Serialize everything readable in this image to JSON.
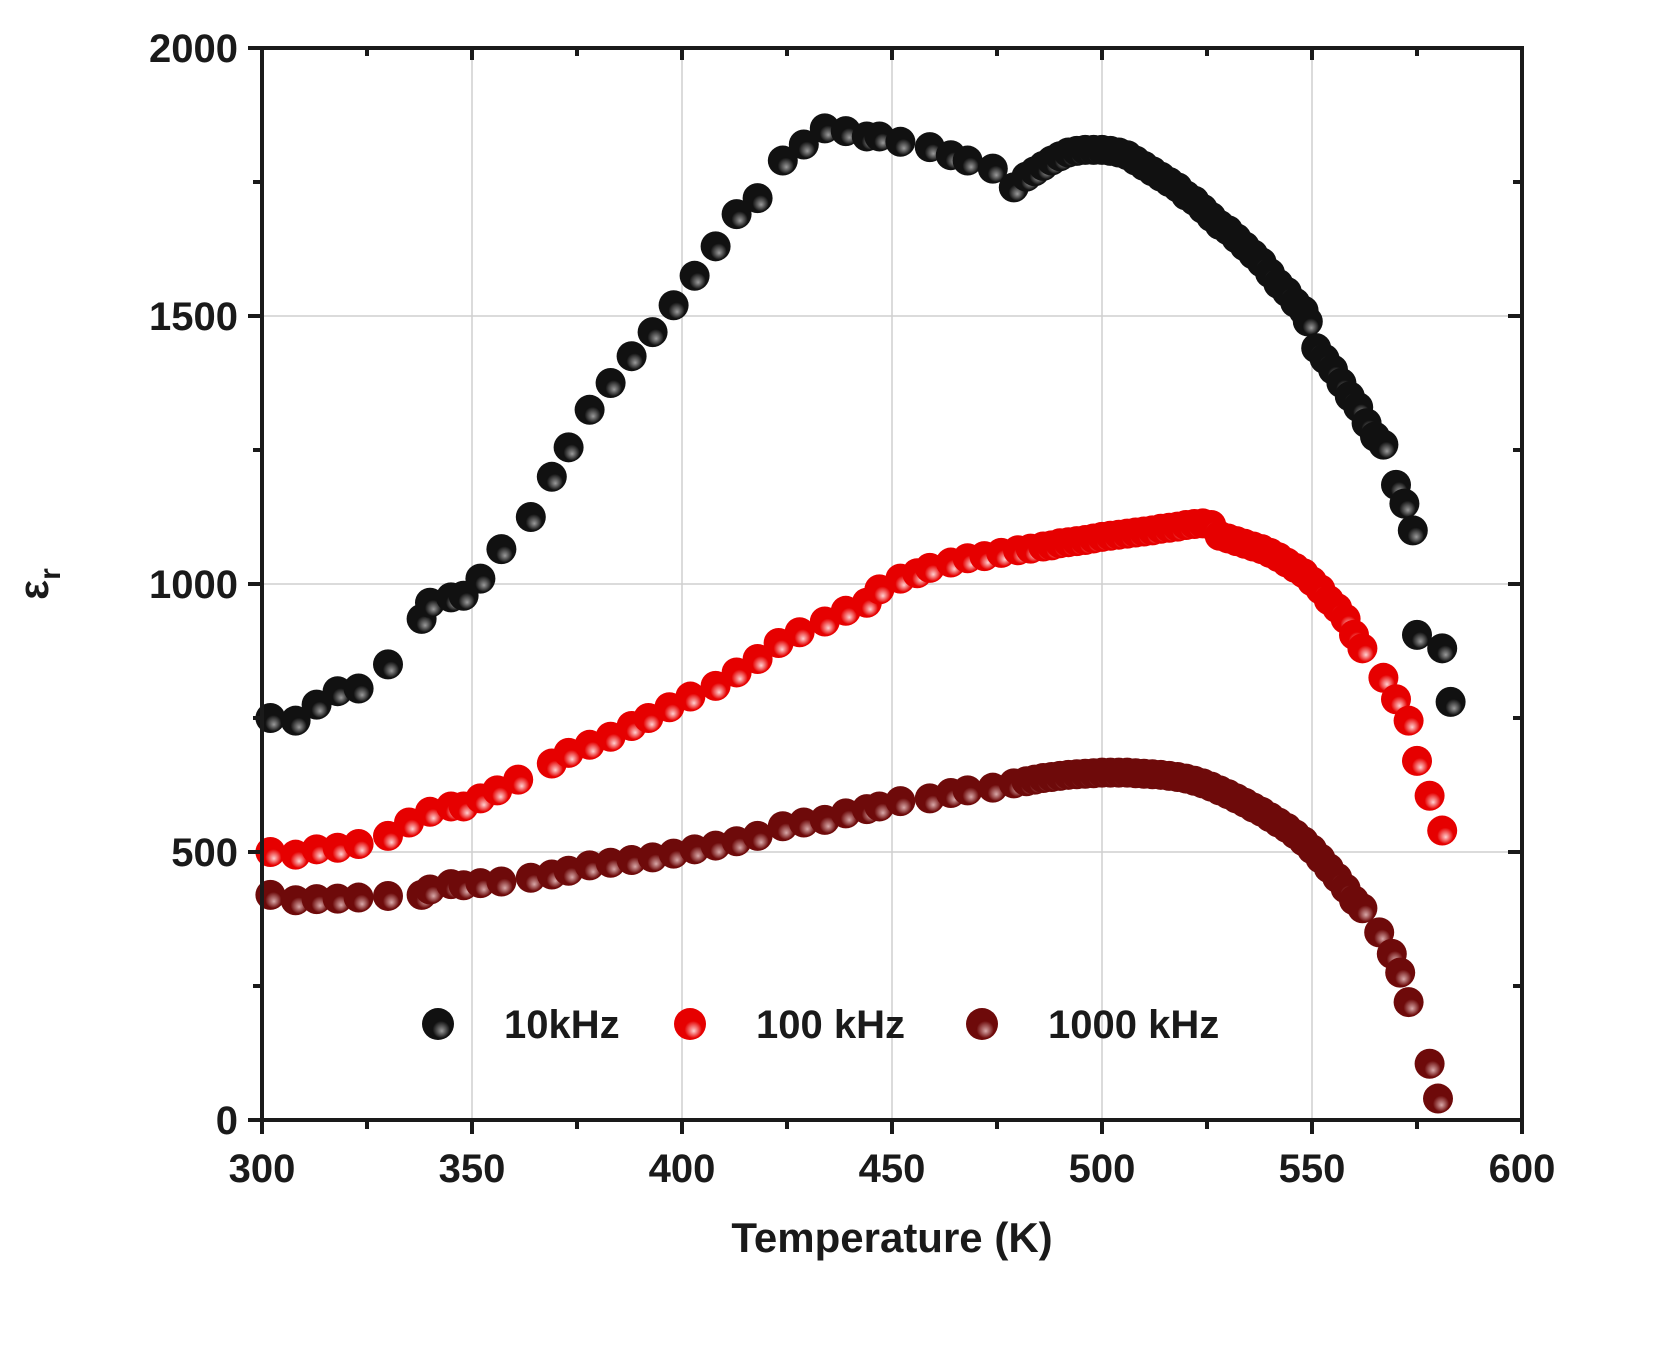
{
  "chart_data": {
    "type": "scatter",
    "title": "",
    "xlabel": "Temperature (K)",
    "ylabel_main": "ε",
    "ylabel_sub": "r",
    "xlim": [
      300,
      600
    ],
    "ylim": [
      0,
      2000
    ],
    "xticks": [
      300,
      350,
      400,
      450,
      500,
      550,
      600
    ],
    "yticks": [
      0,
      500,
      1000,
      1500,
      2000
    ],
    "grid": true,
    "legend_position": "bottom-center",
    "series": [
      {
        "name": "10kHz",
        "color": "#111111",
        "highlight": "#9a9a9a",
        "points": [
          [
            302,
            750
          ],
          [
            308,
            745
          ],
          [
            313,
            775
          ],
          [
            318,
            800
          ],
          [
            323,
            805
          ],
          [
            330,
            850
          ],
          [
            338,
            935
          ],
          [
            340,
            965
          ],
          [
            345,
            975
          ],
          [
            348,
            978
          ],
          [
            352,
            1010
          ],
          [
            357,
            1065
          ],
          [
            364,
            1125
          ],
          [
            369,
            1200
          ],
          [
            373,
            1255
          ],
          [
            378,
            1325
          ],
          [
            383,
            1375
          ],
          [
            388,
            1425
          ],
          [
            393,
            1470
          ],
          [
            398,
            1520
          ],
          [
            403,
            1575
          ],
          [
            408,
            1630
          ],
          [
            413,
            1690
          ],
          [
            418,
            1720
          ],
          [
            424,
            1790
          ],
          [
            429,
            1820
          ],
          [
            434,
            1850
          ],
          [
            439,
            1845
          ],
          [
            444,
            1835
          ],
          [
            447,
            1835
          ],
          [
            452,
            1825
          ],
          [
            459,
            1815
          ],
          [
            464,
            1800
          ],
          [
            468,
            1790
          ],
          [
            474,
            1775
          ],
          [
            479,
            1740
          ],
          [
            482,
            1760
          ],
          [
            484,
            1770
          ],
          [
            486,
            1780
          ],
          [
            488,
            1790
          ],
          [
            490,
            1798
          ],
          [
            492,
            1805
          ],
          [
            494,
            1808
          ],
          [
            496,
            1810
          ],
          [
            498,
            1810
          ],
          [
            500,
            1810
          ],
          [
            502,
            1808
          ],
          [
            504,
            1805
          ],
          [
            506,
            1800
          ],
          [
            508,
            1790
          ],
          [
            510,
            1780
          ],
          [
            512,
            1770
          ],
          [
            514,
            1760
          ],
          [
            516,
            1750
          ],
          [
            518,
            1740
          ],
          [
            520,
            1725
          ],
          [
            522,
            1715
          ],
          [
            524,
            1700
          ],
          [
            526,
            1685
          ],
          [
            528,
            1670
          ],
          [
            530,
            1660
          ],
          [
            532,
            1645
          ],
          [
            534,
            1630
          ],
          [
            536,
            1615
          ],
          [
            538,
            1600
          ],
          [
            540,
            1580
          ],
          [
            542,
            1560
          ],
          [
            544,
            1545
          ],
          [
            546,
            1525
          ],
          [
            548,
            1510
          ],
          [
            549,
            1490
          ],
          [
            551,
            1440
          ],
          [
            553,
            1420
          ],
          [
            555,
            1400
          ],
          [
            557,
            1375
          ],
          [
            559,
            1350
          ],
          [
            561,
            1330
          ],
          [
            563,
            1300
          ],
          [
            565,
            1275
          ],
          [
            567,
            1260
          ],
          [
            570,
            1185
          ],
          [
            572,
            1150
          ],
          [
            574,
            1100
          ],
          [
            575,
            905
          ],
          [
            581,
            880
          ],
          [
            583,
            780
          ]
        ]
      },
      {
        "name": "100 kHz",
        "color": "#e60000",
        "highlight": "#ffd0d0",
        "points": [
          [
            302,
            500
          ],
          [
            308,
            495
          ],
          [
            313,
            505
          ],
          [
            318,
            508
          ],
          [
            323,
            515
          ],
          [
            330,
            530
          ],
          [
            335,
            555
          ],
          [
            340,
            575
          ],
          [
            345,
            585
          ],
          [
            348,
            585
          ],
          [
            352,
            600
          ],
          [
            356,
            615
          ],
          [
            361,
            635
          ],
          [
            369,
            665
          ],
          [
            373,
            685
          ],
          [
            378,
            700
          ],
          [
            383,
            715
          ],
          [
            388,
            735
          ],
          [
            392,
            750
          ],
          [
            397,
            770
          ],
          [
            402,
            790
          ],
          [
            408,
            810
          ],
          [
            413,
            835
          ],
          [
            418,
            860
          ],
          [
            423,
            890
          ],
          [
            428,
            910
          ],
          [
            434,
            930
          ],
          [
            439,
            950
          ],
          [
            444,
            965
          ],
          [
            447,
            990
          ],
          [
            452,
            1010
          ],
          [
            456,
            1020
          ],
          [
            459,
            1030
          ],
          [
            464,
            1040
          ],
          [
            468,
            1048
          ],
          [
            472,
            1052
          ],
          [
            476,
            1058
          ],
          [
            480,
            1063
          ],
          [
            483,
            1066
          ],
          [
            486,
            1070
          ],
          [
            488,
            1072
          ],
          [
            490,
            1076
          ],
          [
            492,
            1078
          ],
          [
            494,
            1080
          ],
          [
            496,
            1082
          ],
          [
            498,
            1085
          ],
          [
            500,
            1088
          ],
          [
            502,
            1090
          ],
          [
            504,
            1092
          ],
          [
            506,
            1094
          ],
          [
            508,
            1096
          ],
          [
            510,
            1098
          ],
          [
            512,
            1100
          ],
          [
            514,
            1103
          ],
          [
            516,
            1105
          ],
          [
            518,
            1107
          ],
          [
            520,
            1110
          ],
          [
            522,
            1112
          ],
          [
            524,
            1113
          ],
          [
            526,
            1110
          ],
          [
            528,
            1090
          ],
          [
            530,
            1085
          ],
          [
            532,
            1080
          ],
          [
            534,
            1075
          ],
          [
            536,
            1070
          ],
          [
            538,
            1065
          ],
          [
            540,
            1058
          ],
          [
            542,
            1050
          ],
          [
            544,
            1040
          ],
          [
            546,
            1030
          ],
          [
            548,
            1020
          ],
          [
            550,
            1005
          ],
          [
            552,
            990
          ],
          [
            554,
            970
          ],
          [
            556,
            955
          ],
          [
            558,
            935
          ],
          [
            560,
            905
          ],
          [
            562,
            880
          ],
          [
            567,
            825
          ],
          [
            570,
            785
          ],
          [
            573,
            745
          ],
          [
            575,
            670
          ],
          [
            578,
            605
          ],
          [
            581,
            540
          ]
        ]
      },
      {
        "name": "1000 kHz",
        "color": "#6e0a0a",
        "highlight": "#d8a8a8",
        "points": [
          [
            302,
            420
          ],
          [
            308,
            410
          ],
          [
            313,
            412
          ],
          [
            318,
            413
          ],
          [
            323,
            415
          ],
          [
            330,
            418
          ],
          [
            338,
            420
          ],
          [
            340,
            430
          ],
          [
            345,
            440
          ],
          [
            348,
            438
          ],
          [
            352,
            442
          ],
          [
            357,
            445
          ],
          [
            364,
            452
          ],
          [
            369,
            458
          ],
          [
            373,
            465
          ],
          [
            378,
            475
          ],
          [
            383,
            480
          ],
          [
            388,
            485
          ],
          [
            393,
            490
          ],
          [
            398,
            497
          ],
          [
            403,
            505
          ],
          [
            408,
            512
          ],
          [
            413,
            520
          ],
          [
            418,
            530
          ],
          [
            424,
            548
          ],
          [
            429,
            555
          ],
          [
            434,
            560
          ],
          [
            439,
            572
          ],
          [
            444,
            580
          ],
          [
            447,
            585
          ],
          [
            452,
            595
          ],
          [
            459,
            600
          ],
          [
            464,
            610
          ],
          [
            468,
            615
          ],
          [
            474,
            620
          ],
          [
            479,
            628
          ],
          [
            482,
            632
          ],
          [
            484,
            635
          ],
          [
            486,
            638
          ],
          [
            488,
            640
          ],
          [
            490,
            642
          ],
          [
            492,
            644
          ],
          [
            494,
            645
          ],
          [
            496,
            646
          ],
          [
            498,
            647
          ],
          [
            500,
            648
          ],
          [
            502,
            648
          ],
          [
            504,
            648
          ],
          [
            506,
            648
          ],
          [
            508,
            647
          ],
          [
            510,
            646
          ],
          [
            512,
            645
          ],
          [
            514,
            644
          ],
          [
            516,
            642
          ],
          [
            518,
            640
          ],
          [
            520,
            637
          ],
          [
            522,
            633
          ],
          [
            524,
            628
          ],
          [
            526,
            622
          ],
          [
            528,
            615
          ],
          [
            530,
            608
          ],
          [
            532,
            600
          ],
          [
            534,
            592
          ],
          [
            536,
            583
          ],
          [
            538,
            575
          ],
          [
            540,
            565
          ],
          [
            542,
            555
          ],
          [
            544,
            545
          ],
          [
            546,
            533
          ],
          [
            548,
            520
          ],
          [
            550,
            505
          ],
          [
            552,
            488
          ],
          [
            554,
            470
          ],
          [
            556,
            452
          ],
          [
            558,
            432
          ],
          [
            560,
            410
          ],
          [
            562,
            395
          ],
          [
            566,
            350
          ],
          [
            569,
            310
          ],
          [
            571,
            275
          ],
          [
            573,
            220
          ],
          [
            578,
            105
          ],
          [
            580,
            40
          ]
        ]
      }
    ]
  }
}
